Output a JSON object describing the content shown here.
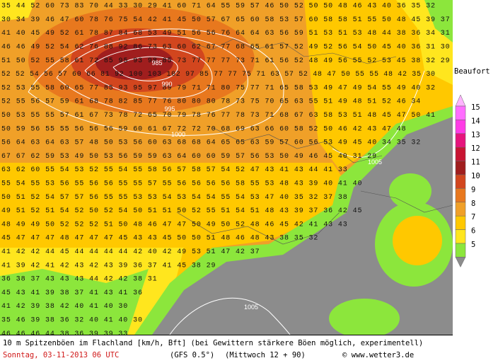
{
  "map": {
    "grid_rows": [
      "35 44 52 60 73 83 70 44 33 30 29 41 60 71 64 55 59 57 46 50 52 50 50 48 46 43 40 36 35 32",
      "30 34 39 46 47 60 78 76 75 54 42 41 45 50 57 67 65 60 58 53 57 60 58 58 51 55 50 48 45 39 37 31",
      "41 40 45 49 52 61 78 87 84 68 53 49 51 56 56 76 64 64 63 56 59 51 53 51 53 48 44 38 36 34 31 31",
      "46 46 49 52 54 62 76 88 92 86 73 63 60 62 67 77 68 65 61 57 52 49 52 56 54 50 45 40 36 31 30",
      "51 50 52 55 58 61 72 85 95 93 98 85 73 77 77 77 73 71 61 56 52 48 49 56 55 52 53 45 38 32 29",
      "52 52 54 56 57 60 66 81 92 100 103 102 97 85 77 77 75 71 63 57 52 48 47 50 55 55 48 42 35 30",
      "52 53 55 58 60 65 77 85 93 95 97 89 79 71 71 80 75 77 71 65 58 53 49 47 49 54 55 49 40 32",
      "52 55 56 57 59 61 68 78 82 85 77 76 80 80 80 78 73 75 70 65 63 55 51 49 48 51 52 46 34",
      "50 53 55 55 57 61 67 73 78 72 65 70 79 78 76 77 78 73 71 68 67 63 58 53 51 48 45 47 50 41",
      "50 59 56 55 55 56 56 56 59 60 61 67 72 72 70 68 69 63 66 60 58 52 50 46 42 43 47 48",
      "56 64 63 64 63 57 48 50 53 56 60 63 68 68 64 65 65 63 59 57 60 56 53 49 45 40 34 35 32",
      "67 67 62 59 53 49 50 53 56 59 59 63 64 60 60 59 57 56 53 50 49 46 45 40 31 29",
      "63 62 60 55 54 53 52 55 54 55 58 56 57 58 57 54 52 47 43 41 43 44 41 33",
      "55 54 55 53 56 55 56 56 55 55 57 55 56 56 56 56 58 55 53 48 43 39 40 41 40",
      "50 51 52 54 57 57 56 55 55 53 53 54 53 54 54 55 54 53 47 40 35 32 37 38",
      "49 51 52 51 54 52 50 52 54 50 51 51 50 52 55 51 54 51 48 43 39 37 36 42 45",
      "48 49 49 50 52 52 52 51 50 48 46 47 47 50 49 50 52 48 46 45 42 41 43 43",
      "45 47 47 47 48 47 47 47 45 43 43 45 50 50 51 48 46 48 43 38 35 32",
      "41 42 42 44 45 44 44 44 44 42 40 42 49 53 51 47 42 37",
      "41 39 42 41 42 43 42 43 39 36 37 41 45 38 29",
      "36 38 37 43 43 43 44 42 42 38 31",
      "45 43 41 39 38 37 41 43 41 36",
      "41 42 39 38 42 40 41 40 30",
      "35 46 39 38 36 32 40 41 40 30",
      "46 46 46 44 38 36 39 39 33"
    ],
    "contour_labels": [
      "985",
      "990",
      "995",
      "1000",
      "1005",
      "1005"
    ],
    "legend": {
      "title": "Beaufort",
      "levels": [
        15,
        14,
        13,
        12,
        11,
        10,
        9,
        8,
        7,
        6,
        5
      ],
      "colors": [
        "#ff6eff",
        "#ff3ce6",
        "#e6147d",
        "#c81432",
        "#a01e1e",
        "#d2461e",
        "#e8781e",
        "#f0a028",
        "#ffc800",
        "#ffe61e",
        "#8ce63c"
      ]
    },
    "footer": {
      "title": "10 m Spitzenböen im Flachland [km/h, Bft] (bei Gewittern stärkere Böen möglich, experimentell)",
      "date": "Sonntag, 03-11-2013  06 UTC",
      "model": "(GFS 0.5°)",
      "run": "(Mittwoch 12 + 90)",
      "credit": "© www.wetter3.de"
    }
  }
}
